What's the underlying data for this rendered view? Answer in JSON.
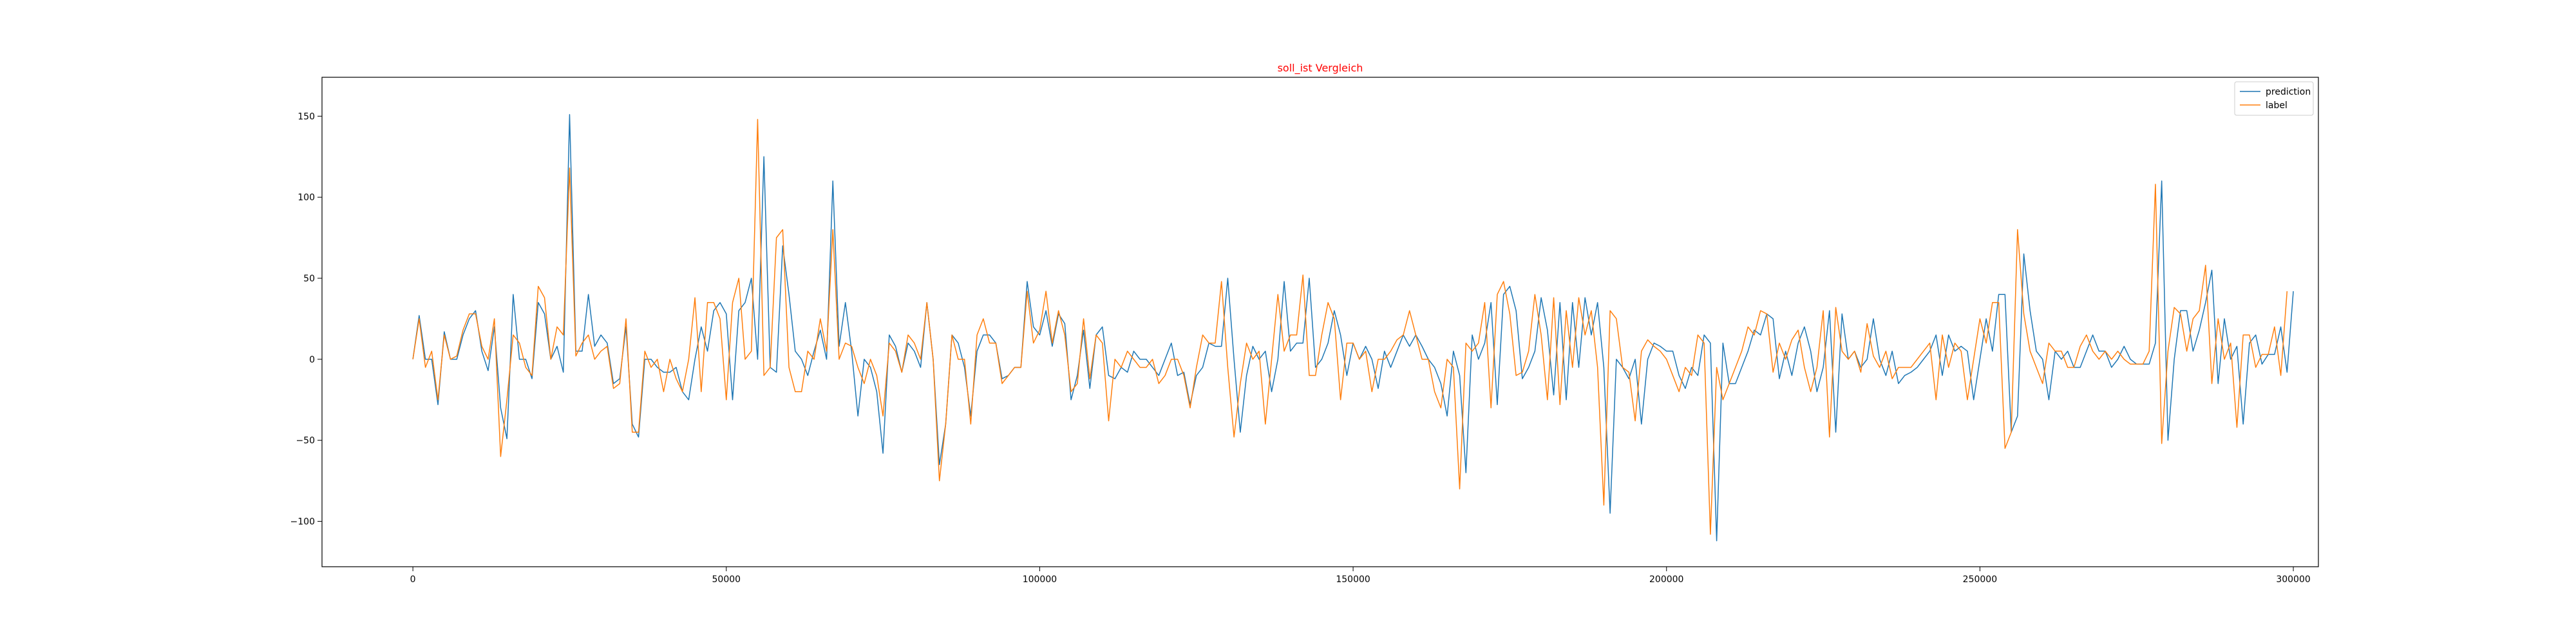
{
  "colors": {
    "prediction": "#1f77b4",
    "label": "#ff7f0e",
    "title": "#ff0000"
  },
  "chart_data": {
    "type": "line",
    "title": "soll_ist Vergleich",
    "xlabel": "",
    "ylabel": "",
    "xlim": [
      -14500,
      304000
    ],
    "ylim": [
      -128,
      174
    ],
    "xticks": [
      0,
      50000,
      100000,
      150000,
      200000,
      250000,
      300000
    ],
    "xtick_labels": [
      "0",
      "50000",
      "100000",
      "150000",
      "200000",
      "250000",
      "300000"
    ],
    "yticks": [
      -100,
      -50,
      0,
      50,
      100,
      150
    ],
    "ytick_labels": [
      "−100",
      "−50",
      "0",
      "50",
      "100",
      "150"
    ],
    "grid": false,
    "legend_position": "top-right",
    "x_start": 0,
    "x_step": 1000,
    "series": [
      {
        "name": "prediction",
        "values": [
          0,
          27,
          0,
          0,
          -28,
          17,
          0,
          0,
          15,
          25,
          30,
          5,
          -7,
          20,
          -30,
          -49,
          40,
          0,
          0,
          -12,
          35,
          28,
          0,
          8,
          -8,
          151,
          5,
          5,
          40,
          8,
          15,
          10,
          -15,
          -12,
          20,
          -40,
          -48,
          0,
          0,
          -5,
          -8,
          -8,
          -5,
          -20,
          -25,
          0,
          20,
          5,
          30,
          35,
          28,
          -25,
          30,
          35,
          50,
          0,
          125,
          -5,
          -8,
          70,
          40,
          5,
          0,
          -10,
          5,
          18,
          0,
          110,
          8,
          35,
          5,
          -35,
          0,
          -5,
          -20,
          -58,
          15,
          8,
          -8,
          10,
          5,
          -5,
          35,
          0,
          -65,
          -40,
          15,
          10,
          -5,
          -35,
          5,
          15,
          15,
          10,
          -12,
          -10,
          -5,
          -5,
          48,
          20,
          15,
          30,
          8,
          28,
          22,
          -25,
          -10,
          18,
          -18,
          15,
          20,
          -10,
          -12,
          -5,
          -8,
          5,
          0,
          0,
          -5,
          -10,
          0,
          10,
          -10,
          -8,
          -28,
          -10,
          -5,
          10,
          8,
          8,
          50,
          0,
          -45,
          -10,
          8,
          0,
          5,
          -20,
          0,
          48,
          5,
          10,
          10,
          50,
          -5,
          0,
          10,
          30,
          15,
          -10,
          10,
          0,
          8,
          0,
          -18,
          5,
          -5,
          5,
          15,
          8,
          15,
          8,
          0,
          -5,
          -15,
          -35,
          5,
          -10,
          -70,
          15,
          0,
          10,
          35,
          -28,
          40,
          45,
          30,
          -12,
          -5,
          5,
          38,
          18,
          -22,
          35,
          -25,
          35,
          -5,
          38,
          15,
          35,
          -5,
          -95,
          0,
          -5,
          -12,
          0,
          -40,
          0,
          10,
          8,
          5,
          5,
          -10,
          -18,
          -5,
          -10,
          15,
          10,
          -112,
          10,
          -15,
          -15,
          -5,
          5,
          18,
          15,
          28,
          25,
          -12,
          5,
          -10,
          10,
          20,
          5,
          -20,
          -5,
          30,
          -45,
          28,
          0,
          5,
          -5,
          0,
          25,
          0,
          -10,
          5,
          -15,
          -10,
          -8,
          -5,
          0,
          5,
          15,
          -10,
          15,
          5,
          8,
          5,
          -25,
          0,
          25,
          5,
          40,
          40,
          -45,
          -35,
          65,
          30,
          5,
          0,
          -25,
          5,
          0,
          5,
          -5,
          -5,
          5,
          15,
          5,
          5,
          -5,
          0,
          8,
          0,
          -3,
          -3,
          -3,
          10,
          110,
          -50,
          0,
          30,
          30,
          5,
          18,
          35,
          55,
          -15,
          25,
          0,
          8,
          -40,
          10,
          15,
          -3,
          3,
          3,
          20,
          -8,
          42
        ]
      },
      {
        "name": "label",
        "values": [
          0,
          25,
          -5,
          5,
          -25,
          15,
          0,
          2,
          18,
          28,
          28,
          8,
          0,
          25,
          -60,
          -25,
          15,
          10,
          -5,
          -10,
          45,
          38,
          0,
          20,
          15,
          118,
          2,
          10,
          15,
          0,
          5,
          8,
          -18,
          -15,
          25,
          -45,
          -45,
          5,
          -5,
          0,
          -20,
          0,
          -12,
          -20,
          0,
          38,
          -20,
          35,
          35,
          25,
          -25,
          35,
          50,
          0,
          5,
          148,
          -10,
          -5,
          75,
          80,
          -5,
          -20,
          -20,
          5,
          0,
          25,
          5,
          80,
          0,
          10,
          8,
          -5,
          -15,
          0,
          -10,
          -35,
          10,
          5,
          -8,
          15,
          10,
          0,
          35,
          0,
          -75,
          -40,
          15,
          0,
          0,
          -40,
          15,
          25,
          10,
          10,
          -15,
          -10,
          -5,
          -5,
          42,
          10,
          18,
          42,
          10,
          30,
          15,
          -20,
          -15,
          25,
          -12,
          15,
          10,
          -38,
          0,
          -5,
          5,
          0,
          -5,
          -5,
          0,
          -15,
          -10,
          0,
          0,
          -10,
          -30,
          -5,
          15,
          10,
          10,
          48,
          -5,
          -48,
          -15,
          10,
          0,
          5,
          -40,
          0,
          40,
          5,
          15,
          15,
          52,
          -10,
          -10,
          15,
          35,
          25,
          -25,
          10,
          10,
          0,
          5,
          -20,
          0,
          0,
          5,
          12,
          15,
          30,
          15,
          0,
          0,
          -20,
          -30,
          0,
          -5,
          -80,
          10,
          5,
          10,
          35,
          -30,
          40,
          48,
          28,
          -10,
          -8,
          5,
          40,
          15,
          -25,
          38,
          -28,
          30,
          -5,
          38,
          15,
          30,
          -5,
          -90,
          30,
          25,
          -5,
          -8,
          -38,
          5,
          12,
          8,
          5,
          0,
          -10,
          -20,
          -5,
          -10,
          15,
          10,
          -108,
          -5,
          -25,
          -15,
          -5,
          5,
          20,
          15,
          30,
          28,
          -8,
          10,
          0,
          12,
          18,
          -5,
          -20,
          -5,
          30,
          -48,
          32,
          5,
          0,
          5,
          -8,
          22,
          2,
          -5,
          5,
          -12,
          -5,
          -5,
          -5,
          0,
          5,
          10,
          -25,
          15,
          -5,
          10,
          5,
          -25,
          0,
          25,
          10,
          35,
          35,
          -55,
          -45,
          80,
          28,
          5,
          -5,
          -15,
          10,
          5,
          5,
          -5,
          -5,
          8,
          15,
          5,
          0,
          5,
          0,
          5,
          0,
          -3,
          -3,
          -3,
          5,
          108,
          -52,
          5,
          32,
          28,
          5,
          25,
          30,
          58,
          -15,
          25,
          0,
          10,
          -42,
          15,
          15,
          -5,
          3,
          3,
          20,
          -10,
          42
        ]
      }
    ]
  }
}
